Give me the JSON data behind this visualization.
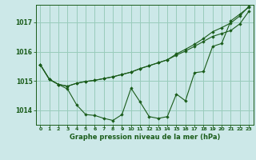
{
  "title": "Graphe pression niveau de la mer (hPa)",
  "bg_color": "#cce8e8",
  "grid_color": "#99ccbb",
  "line_color": "#1a5c1a",
  "marker_color": "#1a5c1a",
  "xlim": [
    -0.5,
    23.5
  ],
  "ylim": [
    1013.5,
    1017.6
  ],
  "yticks": [
    1014,
    1015,
    1016,
    1017
  ],
  "xticks": [
    0,
    1,
    2,
    3,
    4,
    5,
    6,
    7,
    8,
    9,
    10,
    11,
    12,
    13,
    14,
    15,
    16,
    17,
    18,
    19,
    20,
    21,
    22,
    23
  ],
  "series": [
    [
      1015.55,
      1015.05,
      1014.88,
      1014.72,
      1014.18,
      1013.85,
      1013.82,
      1013.72,
      1013.65,
      1013.85,
      1014.75,
      1014.28,
      1013.78,
      1013.72,
      1013.78,
      1014.55,
      1014.32,
      1015.28,
      1015.32,
      1016.18,
      1016.28,
      1017.05,
      1017.28,
      1017.52
    ],
    [
      1015.55,
      1015.05,
      1014.88,
      1014.82,
      1014.92,
      1014.98,
      1015.02,
      1015.08,
      1015.14,
      1015.22,
      1015.3,
      1015.42,
      1015.52,
      1015.62,
      1015.72,
      1015.88,
      1016.02,
      1016.18,
      1016.35,
      1016.52,
      1016.62,
      1016.72,
      1016.95,
      1017.38
    ],
    [
      1015.55,
      1015.05,
      1014.88,
      1014.82,
      1014.92,
      1014.98,
      1015.02,
      1015.08,
      1015.14,
      1015.22,
      1015.3,
      1015.42,
      1015.52,
      1015.62,
      1015.72,
      1015.92,
      1016.08,
      1016.25,
      1016.45,
      1016.68,
      1016.82,
      1016.98,
      1017.22,
      1017.55
    ]
  ]
}
